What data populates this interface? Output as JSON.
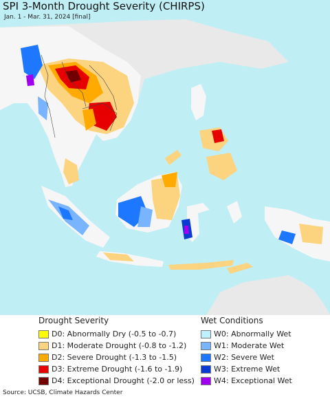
{
  "title": "SPI 3-Month Drought Severity (CHIRPS)",
  "subtitle": "Jan. 1 - Mar. 31, 2024 [final]",
  "source": "Source: UCSB, Climate Hazards Center",
  "colors": {
    "ocean": "#bfeef5",
    "land_neutral": "#f6f6f6",
    "land_outside": "#e9e9e9",
    "border": "#444444",
    "D0": "#ffff00",
    "D1": "#fcd37f",
    "D2": "#ffaa00",
    "D3": "#e60000",
    "D4": "#730000",
    "W0": "#bff0ff",
    "W1": "#78b4ff",
    "W2": "#1e78ff",
    "W3": "#0a3cd2",
    "W4": "#a000f0"
  },
  "legend": {
    "drought_title": "Drought Severity",
    "wet_title": "Wet Conditions",
    "drought": [
      {
        "code": "D0",
        "label": "D0: Abnormally Dry (-0.5 to -0.7)"
      },
      {
        "code": "D1",
        "label": "D1: Moderate Drought (-0.8 to -1.2)"
      },
      {
        "code": "D2",
        "label": "D2: Severe Drought (-1.3 to -1.5)"
      },
      {
        "code": "D3",
        "label": "D3: Extreme Drought (-1.6 to -1.9)"
      },
      {
        "code": "D4",
        "label": "D4: Exceptional Drought (-2.0 or less)"
      }
    ],
    "wet": [
      {
        "code": "W0",
        "label": "W0: Abnormally Wet"
      },
      {
        "code": "W1",
        "label": "W1: Moderate Wet"
      },
      {
        "code": "W2",
        "label": "W2: Severe Wet"
      },
      {
        "code": "W3",
        "label": "W3: Extreme Wet"
      },
      {
        "code": "W4",
        "label": "W4: Exceptional Wet"
      }
    ]
  }
}
